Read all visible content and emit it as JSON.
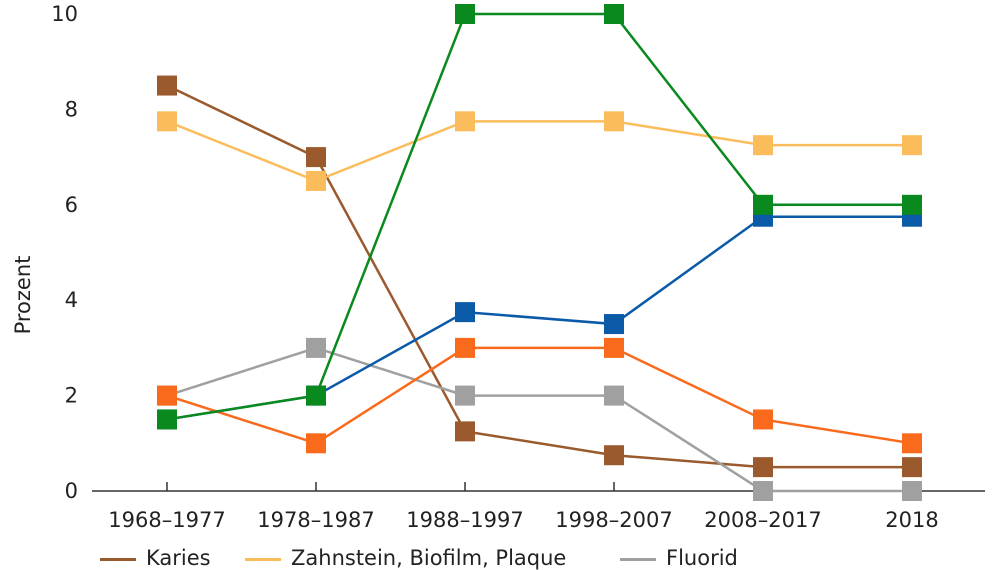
{
  "chart_data": {
    "type": "line",
    "title": "",
    "xlabel": "",
    "ylabel": "Prozent",
    "ylim": [
      0,
      10
    ],
    "yticks": [
      "0",
      "2",
      "4",
      "6",
      "8",
      "10"
    ],
    "categories": [
      "1968–1977",
      "1978–1987",
      "1988–1997",
      "1998–2007",
      "2008–2017",
      "2018"
    ],
    "grid": false,
    "legend_position": "bottom",
    "series": [
      {
        "name": "Karies",
        "color": "#9a5a2e",
        "values": [
          8.5,
          7,
          1.25,
          0.75,
          0.5,
          0.5
        ]
      },
      {
        "name": "Zahnstein, Biofilm, Plaque",
        "color": "#fbbd5c",
        "values": [
          7.75,
          6.5,
          7.75,
          7.75,
          7.25,
          7.25
        ]
      },
      {
        "name": "Fluorid",
        "color": "#a0a0a0",
        "values": [
          2,
          3,
          2,
          2,
          0,
          0
        ]
      },
      {
        "name": "",
        "color": "#0a8a1e",
        "values": [
          1.5,
          2,
          10,
          10,
          6,
          6
        ]
      },
      {
        "name": "",
        "color": "#0a5aa8",
        "values": [
          1.5,
          2,
          3.75,
          3.5,
          5.75,
          5.75
        ]
      },
      {
        "name": "",
        "color": "#f96a1c",
        "values": [
          2,
          1,
          3,
          3,
          1.5,
          1
        ]
      }
    ]
  }
}
